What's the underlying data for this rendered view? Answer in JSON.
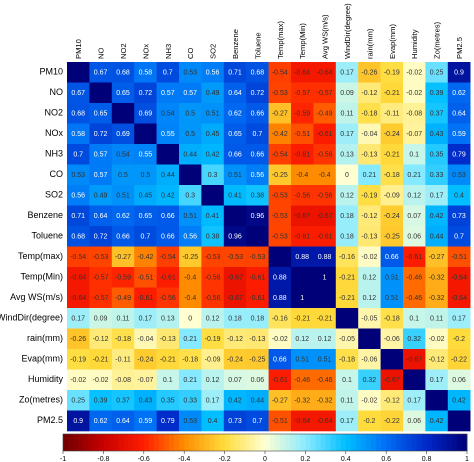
{
  "chart_data": {
    "type": "heatmap",
    "variables": [
      "PM10",
      "NO",
      "NO2",
      "NOx",
      "NH3",
      "CO",
      "SO2",
      "Benzene",
      "Toluene",
      "Temp(max)",
      "Temp(Min)",
      "Avg WS(m/s)",
      "WindDir(degree)",
      "rain(mm)",
      "Evap(mm)",
      "Humidity",
      "Zo(metres)",
      "PM2.5"
    ],
    "values": [
      [
        "",
        "0.67",
        "0.68",
        "0.58",
        "0.7",
        "0.53",
        "0.56",
        "0.71",
        "0.68",
        "-0.54",
        "-0.64",
        "-0.64",
        "0.17",
        "-0.26",
        "-0.19",
        "-0.02",
        "0.25",
        "0.9"
      ],
      [
        "0.67",
        "",
        "0.65",
        "0.72",
        "0.57",
        "0.57",
        "0.49",
        "0.64",
        "0.72",
        "-0.53",
        "-0.57",
        "-0.57",
        "0.09",
        "-0.12",
        "-0.21",
        "-0.02",
        "0.39",
        "0.62"
      ],
      [
        "0.68",
        "0.65",
        "",
        "0.69",
        "0.54",
        "0.5",
        "0.51",
        "0.62",
        "0.66",
        "-0.27",
        "-0.59",
        "-0.49",
        "0.11",
        "-0.18",
        "-0.11",
        "-0.08",
        "0.37",
        "0.64"
      ],
      [
        "0.58",
        "0.72",
        "0.69",
        "",
        "0.55",
        "0.5",
        "0.45",
        "0.65",
        "0.7",
        "-0.42",
        "-0.51",
        "-0.61",
        "0.17",
        "-0.04",
        "-0.24",
        "-0.07",
        "0.43",
        "0.59"
      ],
      [
        "0.7",
        "0.57",
        "0.54",
        "0.55",
        "",
        "0.44",
        "0.42",
        "0.66",
        "0.66",
        "-0.54",
        "-0.61",
        "-0.56",
        "0.13",
        "-0.13",
        "-0.21",
        "0.1",
        "0.35",
        "0.79"
      ],
      [
        "0.53",
        "0.57",
        "0.5",
        "0.5",
        "0.44",
        "",
        "0.3",
        "0.51",
        "0.56",
        "-0.25",
        "-0.4",
        "-0.4",
        "0",
        "0.21",
        "-0.18",
        "0.21",
        "0.33",
        "0.53"
      ],
      [
        "0.56",
        "0.49",
        "0.51",
        "0.45",
        "0.42",
        "0.3",
        "",
        "0.41",
        "0.38",
        "-0.53",
        "-0.56",
        "-0.56",
        "0.12",
        "-0.19",
        "-0.09",
        "0.12",
        "0.17",
        "0.4"
      ],
      [
        "0.71",
        "0.64",
        "0.62",
        "0.65",
        "0.66",
        "0.51",
        "0.41",
        "",
        "0.96",
        "-0.53",
        "-0.67",
        "-0.67",
        "0.18",
        "-0.12",
        "-0.24",
        "0.07",
        "0.42",
        "0.73"
      ],
      [
        "0.68",
        "0.72",
        "0.66",
        "0.7",
        "0.66",
        "0.56",
        "0.38",
        "0.96",
        "",
        "-0.53",
        "-0.61",
        "-0.61",
        "0.18",
        "-0.13",
        "-0.25",
        "0.06",
        "0.44",
        "0.7"
      ],
      [
        "-0.54",
        "-0.53",
        "-0.27",
        "-0.42",
        "-0.54",
        "-0.25",
        "-0.53",
        "-0.53",
        "-0.53",
        "",
        "0.88",
        "0.88",
        "-0.16",
        "-0.02",
        "0.66",
        "-0.61",
        "-0.27",
        "-0.51"
      ],
      [
        "-0.64",
        "-0.57",
        "-0.59",
        "-0.51",
        "-0.61",
        "-0.4",
        "-0.56",
        "-0.67",
        "-0.61",
        "0.88",
        "",
        "1",
        "-0.21",
        "0.12",
        "0.51",
        "-0.46",
        "-0.32",
        "-0.64"
      ],
      [
        "-0.64",
        "-0.57",
        "-0.49",
        "-0.61",
        "-0.56",
        "-0.4",
        "-0.56",
        "-0.67",
        "-0.61",
        "0.88",
        "1",
        "",
        "-0.21",
        "0.12",
        "0.51",
        "-0.46",
        "-0.32",
        "-0.64"
      ],
      [
        "0.17",
        "0.09",
        "0.11",
        "0.17",
        "0.13",
        "0",
        "0.12",
        "0.18",
        "0.18",
        "-0.16",
        "-0.21",
        "-0.21",
        "",
        "-0.05",
        "-0.18",
        "0.1",
        "0.11",
        "0.17"
      ],
      [
        "-0.26",
        "-0.12",
        "-0.18",
        "-0.04",
        "-0.13",
        "0.21",
        "-0.19",
        "-0.12",
        "-0.13",
        "-0.02",
        "0.12",
        "0.12",
        "-0.05",
        "",
        "-0.06",
        "0.32",
        "-0.02",
        "-0.2"
      ],
      [
        "-0.19",
        "-0.21",
        "-0.11",
        "-0.24",
        "-0.21",
        "-0.18",
        "-0.09",
        "-0.24",
        "-0.25",
        "0.66",
        "0.51",
        "0.51",
        "-0.18",
        "-0.06",
        "",
        "-0.67",
        "-0.12",
        "-0.22"
      ],
      [
        "-0.02",
        "-0.02",
        "-0.08",
        "-0.07",
        "0.1",
        "0.21",
        "0.12",
        "0.07",
        "0.06",
        "-0.61",
        "-0.46",
        "-0.46",
        "0.1",
        "0.32",
        "-0.67",
        "",
        "0.17",
        "0.06"
      ],
      [
        "0.25",
        "0.39",
        "0.37",
        "0.43",
        "0.35",
        "0.33",
        "0.17",
        "0.42",
        "0.44",
        "-0.27",
        "-0.32",
        "-0.32",
        "0.11",
        "-0.02",
        "-0.12",
        "0.17",
        "",
        "0.42"
      ],
      [
        "0.9",
        "0.62",
        "0.64",
        "0.59",
        "0.79",
        "0.53",
        "0.4",
        "0.73",
        "0.7",
        "-0.51",
        "-0.64",
        "-0.64",
        "0.17",
        "-0.2",
        "-0.22",
        "0.06",
        "0.42",
        ""
      ]
    ],
    "colorbar": {
      "min": -1,
      "max": 1,
      "ticks": [
        "-1",
        "-0.8",
        "-0.6",
        "-0.4",
        "-0.2",
        "0",
        "0.2",
        "0.4",
        "0.6",
        "0.8",
        "1"
      ]
    },
    "diagonal_value": 1
  }
}
